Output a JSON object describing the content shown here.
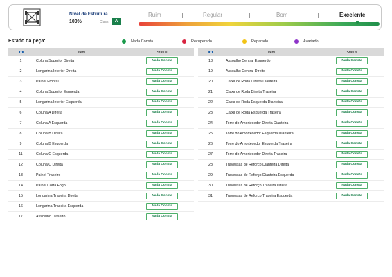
{
  "header": {
    "title": "Nivel de Estrutura",
    "percent": "100%",
    "class_label": "Class",
    "class_value": "A",
    "scale": [
      "Ruim",
      "Regular",
      "Bom",
      "Excelente"
    ]
  },
  "estado_label": "Estado da peça:",
  "legend": [
    {
      "label": "Nada Consta",
      "color": "#1a9a4b"
    },
    {
      "label": "Recuperado",
      "color": "#d8233f"
    },
    {
      "label": "Reparado",
      "color": "#f2c315"
    },
    {
      "label": "Avariado",
      "color": "#8e34c9"
    }
  ],
  "table": {
    "col_item": "Item",
    "col_status": "Status",
    "rows": [
      {
        "n": "1",
        "item": "Coluna Superior Direita",
        "status": "Nada Consta"
      },
      {
        "n": "2",
        "item": "Longarina Inferior Direita",
        "status": "Nada Consta"
      },
      {
        "n": "3",
        "item": "Painel Frontal",
        "status": "Nada Consta"
      },
      {
        "n": "4",
        "item": "Coluna Superior Esquerda",
        "status": "Nada Consta"
      },
      {
        "n": "5",
        "item": "Longarina Inferior Esquerda",
        "status": "Nada Consta"
      },
      {
        "n": "6",
        "item": "Coluna A Direita",
        "status": "Nada Consta"
      },
      {
        "n": "7",
        "item": "Coluna A Esquerda",
        "status": "Nada Consta"
      },
      {
        "n": "8",
        "item": "Coluna B Direita",
        "status": "Nada Consta"
      },
      {
        "n": "9",
        "item": "Coluna B Esquerda",
        "status": "Nada Consta"
      },
      {
        "n": "11",
        "item": "Coluna C Esquerda",
        "status": "Nada Consta"
      },
      {
        "n": "12",
        "item": "Coluna C Direita",
        "status": "Nada Consta"
      },
      {
        "n": "13",
        "item": "Painel Traseiro",
        "status": "Nada Consta"
      },
      {
        "n": "14",
        "item": "Painel Corta Fogo",
        "status": "Nada Consta"
      },
      {
        "n": "15",
        "item": "Longarina Traseira Direita",
        "status": "Nada Consta"
      },
      {
        "n": "16",
        "item": "Longarina Traseira Esquerda",
        "status": "Nada Consta"
      },
      {
        "n": "17",
        "item": "Assoalho Traseiro",
        "status": "Nada Consta"
      },
      {
        "n": "18",
        "item": "Assoalho Central Esquerdo",
        "status": "Nada Consta"
      },
      {
        "n": "19",
        "item": "Assoalho Central Direito",
        "status": "Nada Consta"
      },
      {
        "n": "20",
        "item": "Caixa de Roda Direita Dianteira",
        "status": "Nada Consta"
      },
      {
        "n": "21",
        "item": "Caixa de Roda Direita Traseira",
        "status": "Nada Consta"
      },
      {
        "n": "22",
        "item": "Caixa de Roda Esquerda Dianteira",
        "status": "Nada Consta"
      },
      {
        "n": "23",
        "item": "Caixa de Roda Esquerda Traseira",
        "status": "Nada Consta"
      },
      {
        "n": "24",
        "item": "Torre do Amortecedor Direita Dianteira",
        "status": "Nada Consta"
      },
      {
        "n": "25",
        "item": "Torre do Amortecedor Esquerda Dianteira",
        "status": "Nada Consta"
      },
      {
        "n": "26",
        "item": "Torre do Amortecedor Esquerda Traseira",
        "status": "Nada Consta"
      },
      {
        "n": "27",
        "item": "Torre do Amortecedor Direita Traseira",
        "status": "Nada Consta"
      },
      {
        "n": "28",
        "item": "Travessas de Reforço Dianteira Direita",
        "status": "Nada Consta"
      },
      {
        "n": "29",
        "item": "Travessas de Reforço Dianteira Esquerda",
        "status": "Nada Consta"
      },
      {
        "n": "30",
        "item": "Travessas de Reforço Traseira Direita",
        "status": "Nada Consta"
      },
      {
        "n": "31",
        "item": "Travessas de Reforço Traseira Esquerda",
        "status": "Nada Consta"
      }
    ]
  }
}
